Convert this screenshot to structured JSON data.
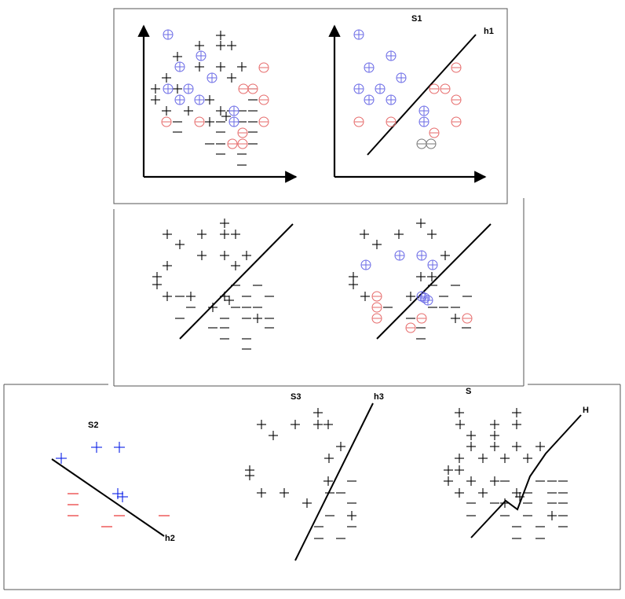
{
  "colors": {
    "positive_highlight": "#6a6ae6",
    "negative_highlight": "#e66a6a",
    "misclassified": "#777777",
    "neutral_mark": "#000000",
    "s2_positive": "#0a1ee6",
    "s2_negative": "#e61e1e"
  },
  "icons": {
    "positive": "plus-icon",
    "negative": "minus-icon",
    "positive_circled": "circled-plus-icon",
    "negative_circled": "circled-minus-icon"
  },
  "labels": {
    "s1": "S1",
    "h1": "h1",
    "s2": "S2",
    "h2": "h2",
    "s3": "S3",
    "h3": "h3",
    "s": "S",
    "h": "H"
  }
}
